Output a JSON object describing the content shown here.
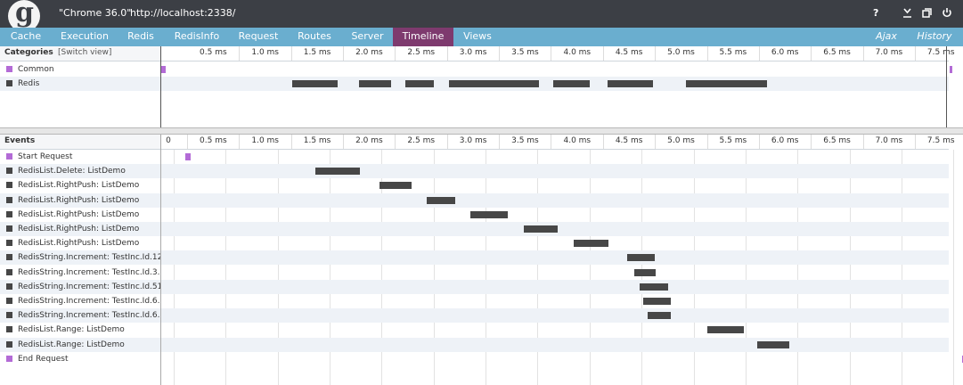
{
  "titlebar": {
    "logo_letter": "g",
    "browser": "\"Chrome 36.0\"",
    "url": "http://localhost:2338/",
    "icons": [
      "help-icon",
      "download-icon",
      "popout-icon",
      "power-icon"
    ],
    "help_label": "?"
  },
  "tabs": [
    "Cache",
    "Execution",
    "Redis",
    "RedisInfo",
    "Request",
    "Routes",
    "Server",
    "Timeline",
    "Views"
  ],
  "active_tab": "Timeline",
  "right_tabs": [
    "Ajax",
    "History"
  ],
  "colors": {
    "titlebar": "#3c3f45",
    "tabbar": "#6aaecf",
    "active_tab": "#7e3a6e",
    "common": "#b36bd6",
    "redis": "#474747",
    "band": "#eef2f7"
  },
  "categories": {
    "title": "Categories",
    "switch_label": "[Switch view]",
    "items": [
      {
        "name": "Common",
        "color": "#b36bd6"
      },
      {
        "name": "Redis",
        "color": "#474747"
      }
    ]
  },
  "events_title": "Events",
  "axis": {
    "unit": "ms",
    "max": 7.6,
    "ticks": [
      "0.5 ms",
      "1.0 ms",
      "1.5 ms",
      "2.0 ms",
      "2.5 ms",
      "3.0 ms",
      "3.5 ms",
      "4.0 ms",
      "4.5 ms",
      "5.0 ms",
      "5.5 ms",
      "6.0 ms",
      "6.5 ms",
      "7.0 ms",
      "7.5 ms"
    ],
    "events_ticks": [
      "0",
      "0.5 ms",
      "1.0 ms",
      "1.5 ms",
      "2.0 ms",
      "2.5 ms",
      "3.0 ms",
      "3.5 ms",
      "4.0 ms",
      "4.5 ms",
      "5.0 ms",
      "5.5 ms",
      "6.0 ms",
      "6.5 ms",
      "7.0 ms",
      "7.5 ms"
    ]
  },
  "category_spans": [
    {
      "category": "Common",
      "start": 0.0,
      "end": 0.04
    },
    {
      "category": "Common",
      "start": 7.58,
      "end": 7.6
    },
    {
      "category": "Redis",
      "start": 1.26,
      "end": 1.7
    },
    {
      "category": "Redis",
      "start": 1.9,
      "end": 2.21
    },
    {
      "category": "Redis",
      "start": 2.35,
      "end": 2.62
    },
    {
      "category": "Redis",
      "start": 2.77,
      "end": 3.63
    },
    {
      "category": "Redis",
      "start": 3.77,
      "end": 4.12
    },
    {
      "category": "Redis",
      "start": 4.29,
      "end": 4.73
    },
    {
      "category": "Redis",
      "start": 5.05,
      "end": 5.83
    }
  ],
  "events": [
    {
      "name": "Start Request",
      "category": "Common",
      "start": 0.11,
      "end": 0.16
    },
    {
      "name": "RedisList.Delete: ListDemo",
      "category": "Redis",
      "start": 1.36,
      "end": 1.79
    },
    {
      "name": "RedisList.RightPush: ListDemo",
      "category": "Redis",
      "start": 1.98,
      "end": 2.29
    },
    {
      "name": "RedisList.RightPush: ListDemo",
      "category": "Redis",
      "start": 2.43,
      "end": 2.71
    },
    {
      "name": "RedisList.RightPush: ListDemo",
      "category": "Redis",
      "start": 2.85,
      "end": 3.21
    },
    {
      "name": "RedisList.RightPush: ListDemo",
      "category": "Redis",
      "start": 3.37,
      "end": 3.69
    },
    {
      "name": "RedisList.RightPush: ListDemo",
      "category": "Redis",
      "start": 3.85,
      "end": 4.18
    },
    {
      "name": "RedisString.Increment: TestInc.Id.12",
      "category": "Redis",
      "start": 4.36,
      "end": 4.63
    },
    {
      "name": "RedisString.Increment: TestInc.Id.3...",
      "category": "Redis",
      "start": 4.43,
      "end": 4.64
    },
    {
      "name": "RedisString.Increment: TestInc.Id.51",
      "category": "Redis",
      "start": 4.48,
      "end": 4.76
    },
    {
      "name": "RedisString.Increment: TestInc.Id.6...",
      "category": "Redis",
      "start": 4.52,
      "end": 4.78
    },
    {
      "name": "RedisString.Increment: TestInc.Id.6...",
      "category": "Redis",
      "start": 4.56,
      "end": 4.78
    },
    {
      "name": "RedisList.Range: ListDemo",
      "category": "Redis",
      "start": 5.13,
      "end": 5.48
    },
    {
      "name": "RedisList.Range: ListDemo",
      "category": "Redis",
      "start": 5.61,
      "end": 5.92
    },
    {
      "name": "End Request",
      "category": "Common",
      "start": 7.58,
      "end": 7.6
    }
  ]
}
